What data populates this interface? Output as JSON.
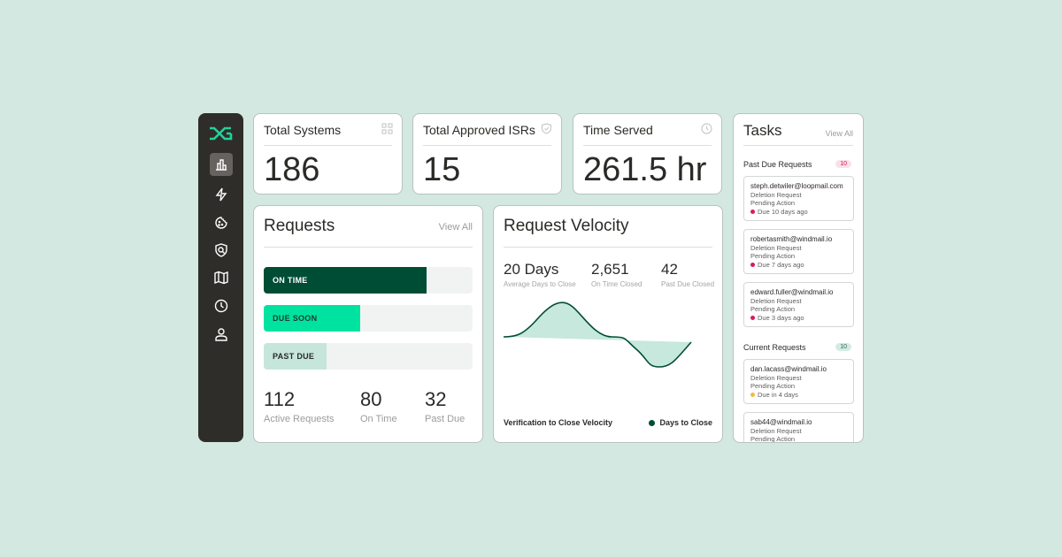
{
  "sidebar": {
    "logo": "logo-dg",
    "items": [
      {
        "icon": "bar-chart-icon",
        "active": true
      },
      {
        "icon": "lightning-icon"
      },
      {
        "icon": "cookie-icon"
      },
      {
        "icon": "shield-search-icon"
      },
      {
        "icon": "map-icon"
      },
      {
        "icon": "clock-icon"
      },
      {
        "icon": "user-icon"
      }
    ]
  },
  "kpis": [
    {
      "title": "Total Systems",
      "value": "186",
      "icon": "grid-icon"
    },
    {
      "title": "Total Approved ISRs",
      "value": "15",
      "icon": "shield-check-icon"
    },
    {
      "title": "Time Served",
      "value": "261.5 hr",
      "icon": "clock-icon"
    }
  ],
  "requests": {
    "title": "Requests",
    "view_all": "View All",
    "bars": [
      {
        "label": "ON TIME",
        "percent": 78,
        "color": "#004d35"
      },
      {
        "label": "DUE SOON",
        "percent": 46,
        "color": "#00e3a0"
      },
      {
        "label": "PAST DUE",
        "percent": 30,
        "color": "#c6e6dc"
      }
    ],
    "stats": [
      {
        "value": "112",
        "label": "Active Requests"
      },
      {
        "value": "80",
        "label": "On Time"
      },
      {
        "value": "32",
        "label": "Past Due"
      }
    ]
  },
  "velocity": {
    "title": "Request Velocity",
    "stats": [
      {
        "value": "20 Days",
        "label": "Average Days to Close"
      },
      {
        "value": "2,651",
        "label": "On Time Closed"
      },
      {
        "value": "42",
        "label": "Past Due Closed"
      }
    ],
    "chart_label": "Verification to Close Velocity",
    "legend": "Days to Close",
    "line_color": "#004d35",
    "fill_color": "#c6e8dd"
  },
  "tasks": {
    "title": "Tasks",
    "view_all": "View All",
    "past_due": {
      "label": "Past Due Requests",
      "count": "10",
      "items": [
        {
          "email": "steph.detwiler@loopmail.com",
          "type": "Deletion Request",
          "status": "Pending Action",
          "due": "Due 10 days ago"
        },
        {
          "email": "robertasmith@windmail.io",
          "type": "Deletion Request",
          "status": "Pending Action",
          "due": "Due 7 days ago"
        },
        {
          "email": "edward.fuller@windmail.io",
          "type": "Deletion Request",
          "status": "Pending Action",
          "due": "Due 3 days ago"
        }
      ]
    },
    "current": {
      "label": "Current Requests",
      "count": "10",
      "items": [
        {
          "email": "dan.lacass@windmail.io",
          "type": "Deletion Request",
          "status": "Pending Action",
          "due": "Due in 4 days"
        },
        {
          "email": "sab44@windmail.io",
          "type": "Deletion Request",
          "status": "Pending Action",
          "due": ""
        }
      ]
    }
  }
}
